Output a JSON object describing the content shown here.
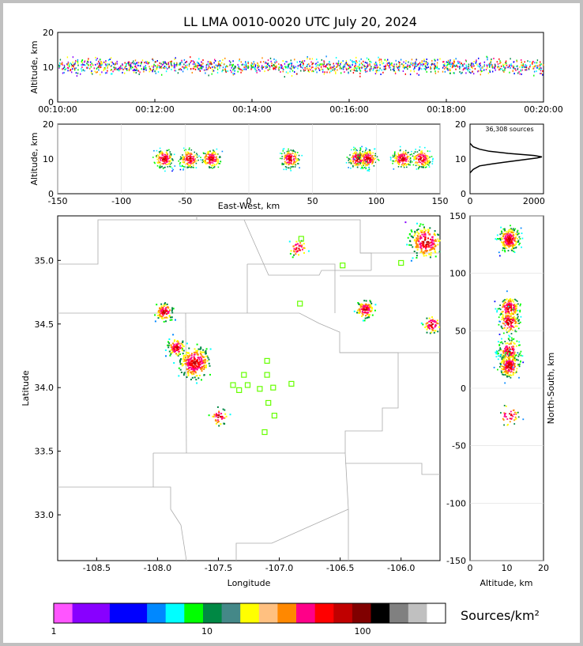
{
  "title": "LL LMA 0010-0020 UTC July 20, 2024",
  "source_count_label": "36,308 sources",
  "legend_label": "Sources/km²",
  "colorbar": {
    "colors": [
      "#ff55ff",
      "#8800ff",
      "#8800ff",
      "#0000ff",
      "#0000ff",
      "#0088ff",
      "#00ffff",
      "#00ff00",
      "#008844",
      "#448888",
      "#ffff00",
      "#ffc080",
      "#ff8800",
      "#ff0088",
      "#ff0000",
      "#c00000",
      "#800000",
      "#000000",
      "#808080",
      "#c0c0c0",
      "#ffffff"
    ],
    "tick_labels": [
      "1",
      "10",
      "100"
    ]
  },
  "chart_data": [
    {
      "type": "scatter",
      "panel": "time-height",
      "xlabel": "",
      "ylabel": "Altitude, km",
      "xticks": [
        "00:10:00",
        "00:12:00",
        "00:14:00",
        "00:16:00",
        "00:18:00",
        "00:20:00"
      ],
      "yticks": [
        "0",
        "10",
        "20"
      ],
      "xlim_minutes": [
        0,
        10
      ],
      "ylim": [
        0,
        20
      ],
      "description_band_km": [
        8,
        13
      ]
    },
    {
      "type": "scatter",
      "panel": "east-west-height",
      "xlabel": "East-West, km",
      "ylabel": "Altitude, km",
      "xticks": [
        "-150",
        "-100",
        "-50",
        "0",
        "50",
        "100",
        "150"
      ],
      "yticks": [
        "0",
        "10",
        "20"
      ],
      "xlim": [
        -150,
        150
      ],
      "ylim": [
        0,
        20
      ],
      "clusters_x_km": [
        -67,
        -47,
        -30,
        32,
        85,
        93,
        120,
        135
      ]
    },
    {
      "type": "line",
      "panel": "altitude-histogram",
      "xticks": [
        "0",
        "2000"
      ],
      "yticks": [
        "0",
        "10",
        "20"
      ],
      "xlim": [
        0,
        2300
      ],
      "ylim": [
        0,
        20
      ],
      "x": [
        0,
        100,
        300,
        700,
        1200,
        1700,
        2100,
        2250,
        2000,
        1200,
        600,
        300,
        100,
        0
      ],
      "y": [
        6,
        7,
        8,
        8.6,
        9.2,
        9.8,
        10.3,
        10.6,
        11.0,
        11.6,
        12.2,
        12.8,
        13.5,
        14.5
      ]
    },
    {
      "type": "scatter",
      "panel": "plan-view",
      "xlabel": "Longitude",
      "ylabel": "Latitude",
      "xticks": [
        "-108.5",
        "-108.0",
        "-107.5",
        "-107.0",
        "-106.5",
        "-106.0"
      ],
      "yticks": [
        "33.0",
        "33.5",
        "34.0",
        "34.5",
        "35.0"
      ],
      "xlim": [
        -108.82,
        -105.68
      ],
      "ylim": [
        32.64,
        35.35
      ],
      "clusters": [
        {
          "lon": -105.8,
          "lat": 35.15
        },
        {
          "lon": -107.7,
          "lat": 34.2
        },
        {
          "lon": -107.95,
          "lat": 34.6
        },
        {
          "lon": -107.85,
          "lat": 34.32
        },
        {
          "lon": -106.3,
          "lat": 34.62
        },
        {
          "lon": -105.75,
          "lat": 34.5
        },
        {
          "lon": -106.85,
          "lat": 35.1
        },
        {
          "lon": -107.5,
          "lat": 33.78
        }
      ],
      "stations": [
        {
          "lon": -106.82,
          "lat": 35.17
        },
        {
          "lon": -106.48,
          "lat": 34.96
        },
        {
          "lon": -106.0,
          "lat": 34.98
        },
        {
          "lon": -106.83,
          "lat": 34.66
        },
        {
          "lon": -107.29,
          "lat": 34.1
        },
        {
          "lon": -107.1,
          "lat": 34.21
        },
        {
          "lon": -107.1,
          "lat": 34.1
        },
        {
          "lon": -107.38,
          "lat": 34.02
        },
        {
          "lon": -107.26,
          "lat": 34.02
        },
        {
          "lon": -107.33,
          "lat": 33.98
        },
        {
          "lon": -107.16,
          "lat": 33.99
        },
        {
          "lon": -107.05,
          "lat": 34.0
        },
        {
          "lon": -106.9,
          "lat": 34.03
        },
        {
          "lon": -107.09,
          "lat": 33.88
        },
        {
          "lon": -107.04,
          "lat": 33.78
        },
        {
          "lon": -107.12,
          "lat": 33.65
        }
      ]
    },
    {
      "type": "scatter",
      "panel": "height-north-south",
      "xlabel": "Altitude, km",
      "ylabel": "North-South, km",
      "xticks": [
        "0",
        "10",
        "20"
      ],
      "yticks": [
        "150",
        "100",
        "50",
        "0",
        "-50",
        "-100",
        "-150"
      ],
      "xlim": [
        0,
        20
      ],
      "ylim": [
        -150,
        150
      ],
      "clusters_y_km": [
        130,
        70,
        58,
        33,
        20,
        -23
      ]
    }
  ]
}
